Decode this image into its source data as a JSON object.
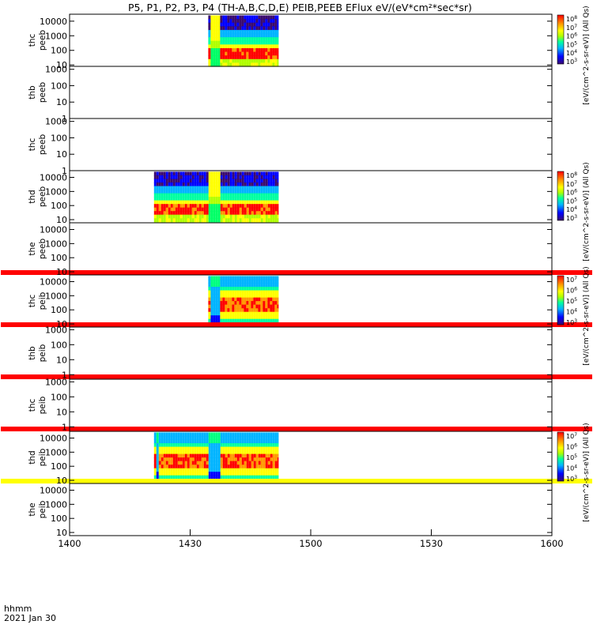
{
  "title": "P5, P1, P2, P3, P4 (TH-A,B,C,D,E) PEIB,PEEB EFlux eV/(eV*cm²*sec*sr)",
  "footer": {
    "time_label": "hhmm",
    "date_label": "2021 Jan 30"
  },
  "chart_data": {
    "type": "heatmap",
    "x_ticks": [
      "1400",
      "1430",
      "1500",
      "1530",
      "1600"
    ],
    "xlim_minutes": [
      0,
      120
    ],
    "panels": [
      {
        "probe": "thc",
        "product": "peeb",
        "ylim": [
          8,
          30000
        ],
        "yticks": [
          "10",
          "100",
          "1000",
          "10000"
        ],
        "data_intervals": [
          [
            34.5,
            52
          ]
        ],
        "flat_lines": [],
        "cbar": "A"
      },
      {
        "probe": "thb",
        "product": "peeb",
        "ylim": [
          1,
          1500
        ],
        "yticks": [
          "1",
          "10",
          "100",
          "1000"
        ],
        "data_intervals": [],
        "flat_lines": [],
        "cbar": ""
      },
      {
        "probe": "thc",
        "product": "peeb",
        "ylim": [
          1,
          1500
        ],
        "yticks": [
          "1",
          "10",
          "100",
          "1000"
        ],
        "data_intervals": [],
        "flat_lines": [],
        "cbar": ""
      },
      {
        "probe": "thd",
        "product": "peeb",
        "ylim": [
          6,
          30000
        ],
        "yticks": [
          "10",
          "100",
          "1000",
          "10000"
        ],
        "data_intervals": [
          [
            21,
            52
          ]
        ],
        "flat_lines": [],
        "cbar": "B"
      },
      {
        "probe": "the",
        "product": "peeb",
        "ylim": [
          6,
          30000
        ],
        "yticks": [
          "10",
          "100",
          "1000",
          "10000"
        ],
        "data_intervals": [],
        "flat_lines": [
          "red"
        ],
        "cbar": ""
      },
      {
        "probe": "thc",
        "product": "peib",
        "ylim": [
          6,
          30000
        ],
        "yticks": [
          "10",
          "100",
          "1000",
          "10000"
        ],
        "data_intervals": [
          [
            34.5,
            52
          ]
        ],
        "flat_lines": [
          "red"
        ],
        "cbar": "C"
      },
      {
        "probe": "thb",
        "product": "peib",
        "ylim": [
          0.5,
          1500
        ],
        "yticks": [
          "1",
          "10",
          "100",
          "1000"
        ],
        "data_intervals": [],
        "flat_lines": [
          "red"
        ],
        "cbar": ""
      },
      {
        "probe": "thc",
        "product": "peib",
        "ylim": [
          0.5,
          1500
        ],
        "yticks": [
          "1",
          "10",
          "100",
          "1000"
        ],
        "data_intervals": [],
        "flat_lines": [
          "red"
        ],
        "cbar": ""
      },
      {
        "probe": "thd",
        "product": "peib",
        "ylim": [
          6,
          30000
        ],
        "yticks": [
          "10",
          "100",
          "1000",
          "10000"
        ],
        "data_intervals": [
          [
            21,
            52
          ]
        ],
        "flat_lines": [
          "yellow"
        ],
        "cbar": "D"
      },
      {
        "probe": "the",
        "product": "peib",
        "ylim": [
          6,
          30000
        ],
        "yticks": [
          "10",
          "100",
          "1000",
          "10000"
        ],
        "data_intervals": [],
        "flat_lines": [],
        "cbar": ""
      }
    ],
    "colorbars": {
      "A": {
        "ticks": [
          {
            "b": "10",
            "e": "8"
          },
          {
            "b": "10",
            "e": "7"
          },
          {
            "b": "10",
            "e": "6"
          },
          {
            "b": "10",
            "e": "5"
          },
          {
            "b": "10",
            "e": "4"
          },
          {
            "b": "10",
            "e": "3"
          }
        ],
        "label": "[eV/(cm^2-s-sr-eV)] (All Qs)"
      },
      "B": {
        "ticks": [
          {
            "b": "10",
            "e": "8"
          },
          {
            "b": "10",
            "e": "7"
          },
          {
            "b": "10",
            "e": "6"
          },
          {
            "b": "10",
            "e": "5"
          },
          {
            "b": "10",
            "e": "4"
          },
          {
            "b": "10",
            "e": "3"
          }
        ],
        "label": "[eV/(cm^2-s-sr-eV)] (All Qs)"
      },
      "C": {
        "ticks": [
          {
            "b": "10",
            "e": "7"
          },
          {
            "b": "10",
            "e": "6"
          },
          {
            "b": "10",
            "e": "5"
          },
          {
            "b": "10",
            "e": "4"
          },
          {
            "b": "10",
            "e": "3"
          }
        ],
        "label": "[eV/(cm^2-s-sr-eV)] (All Qs)"
      },
      "D": {
        "ticks": [
          {
            "b": "10",
            "e": "7"
          },
          {
            "b": "10",
            "e": "6"
          },
          {
            "b": "10",
            "e": "5"
          },
          {
            "b": "10",
            "e": "4"
          },
          {
            "b": "10",
            "e": "3"
          }
        ],
        "label": "[eV/(cm^2-s-sr-eV)] (All Qs)"
      }
    },
    "colormap": [
      "#3a0a6e",
      "#0000ff",
      "#00b4ff",
      "#00ffa0",
      "#b0ff00",
      "#ffff00",
      "#ff9900",
      "#ff0000"
    ],
    "line_colors": {
      "red": "#ff0000",
      "yellow": "#ffff00"
    }
  }
}
